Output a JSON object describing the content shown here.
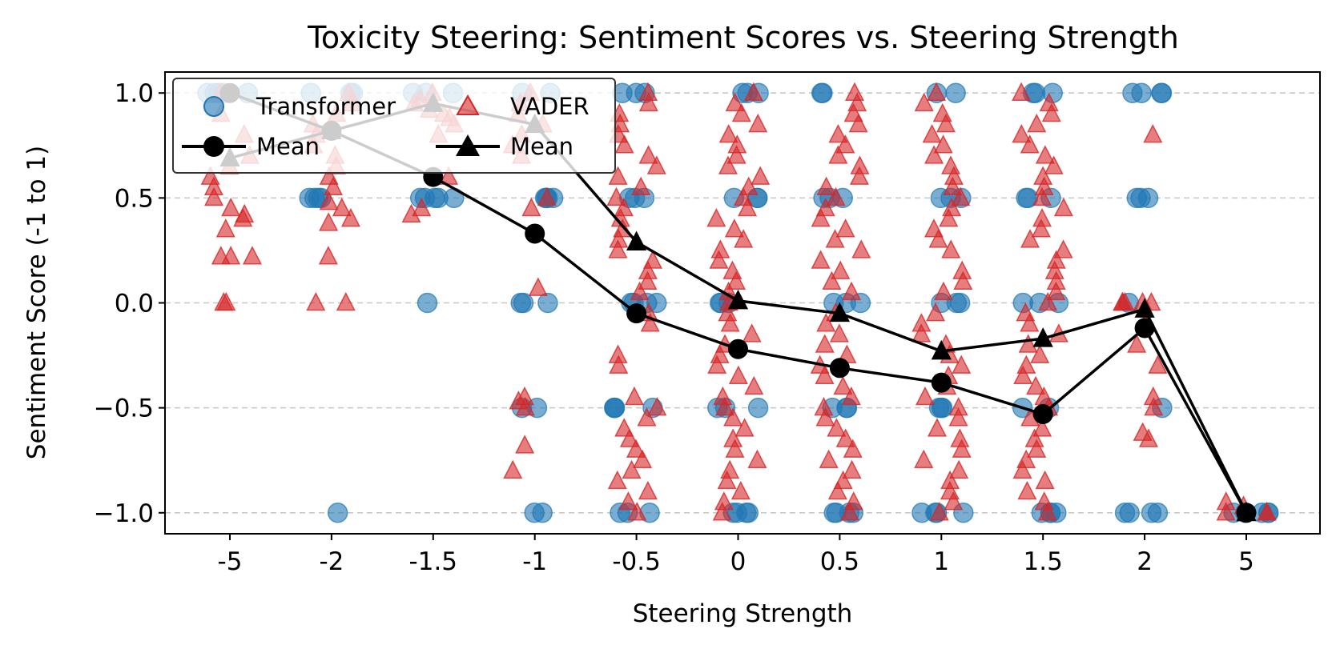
{
  "chart_data": {
    "type": "scatter",
    "title": "Toxicity Steering: Sentiment Scores vs. Steering Strength",
    "xlabel": "Steering Strength",
    "ylabel": "Sentiment Score (-1 to 1)",
    "categories": [
      "-5",
      "-2",
      "-1.5",
      "-1",
      "-0.5",
      "0",
      "0.5",
      "1",
      "1.5",
      "2",
      "5"
    ],
    "ylim": [
      -1.1,
      1.1
    ],
    "yticks": [
      1.0,
      0.5,
      0.0,
      -0.5,
      -1.0
    ],
    "ytick_labels": [
      "1.0",
      "0.5",
      "0.0",
      "−0.5",
      "−1.0"
    ],
    "grid": "horizontal dashed",
    "legend_position": "top-left",
    "series": [
      {
        "name": "Transformer",
        "kind": "scatter",
        "marker": "circle",
        "color": "#1f77b4",
        "points_by_category": [
          [
            1.0,
            1.0,
            1.0,
            1.0,
            1.0
          ],
          [
            1.0,
            1.0,
            1.0,
            0.5,
            0.5,
            0.5,
            0.5,
            -1.0
          ],
          [
            1.0,
            1.0,
            1.0,
            0.5,
            0.5,
            0.5,
            0.5,
            0.5,
            0.0
          ],
          [
            1.0,
            1.0,
            0.5,
            0.5,
            0.5,
            0.5,
            0.0,
            0.0,
            0.0,
            -0.5,
            -0.5,
            -1.0,
            -1.0
          ],
          [
            1.0,
            1.0,
            1.0,
            0.5,
            0.5,
            0.5,
            0.0,
            0.0,
            0.0,
            0.0,
            -0.5,
            -0.5,
            -0.5,
            -0.5,
            -1.0,
            -1.0,
            -1.0
          ],
          [
            1.0,
            1.0,
            1.0,
            0.5,
            0.5,
            0.5,
            0.0,
            0.0,
            0.0,
            -0.5,
            -0.5,
            -0.5,
            -1.0,
            -1.0,
            -1.0,
            -1.0
          ],
          [
            1.0,
            1.0,
            0.5,
            0.5,
            0.5,
            0.0,
            0.0,
            0.0,
            -0.5,
            -0.5,
            -0.5,
            -1.0,
            -1.0,
            -1.0,
            -1.0
          ],
          [
            1.0,
            1.0,
            0.5,
            0.5,
            0.5,
            0.0,
            0.0,
            0.0,
            -0.5,
            -0.5,
            -0.5,
            -1.0,
            -1.0,
            -1.0,
            -1.0
          ],
          [
            1.0,
            1.0,
            1.0,
            0.5,
            0.5,
            0.5,
            0.0,
            0.0,
            0.0,
            -0.5,
            -0.5,
            -1.0,
            -1.0,
            -1.0,
            -1.0
          ],
          [
            1.0,
            1.0,
            1.0,
            1.0,
            0.5,
            0.5,
            0.5,
            0.0,
            -0.5,
            -1.0,
            -1.0,
            -1.0,
            -1.0
          ],
          [
            -1.0,
            -1.0,
            -1.0,
            -1.0,
            -1.0
          ]
        ]
      },
      {
        "name": "VADER",
        "kind": "scatter",
        "marker": "triangle",
        "color": "#d62728",
        "points_by_category": [
          [
            1.0,
            0.9,
            0.8,
            0.7,
            0.65,
            0.6,
            0.55,
            0.5,
            0.45,
            0.42,
            0.4,
            0.35,
            0.22,
            0.22,
            0.22,
            0.0,
            0.0
          ],
          [
            1.0,
            0.95,
            0.9,
            0.85,
            0.8,
            0.75,
            0.7,
            0.65,
            0.6,
            0.55,
            0.48,
            0.45,
            0.4,
            0.38,
            0.22,
            0.0,
            0.0
          ],
          [
            1.0,
            0.97,
            0.95,
            0.92,
            0.9,
            0.88,
            0.85,
            0.8,
            0.6,
            0.45,
            0.42
          ],
          [
            1.0,
            0.95,
            0.9,
            0.85,
            0.8,
            0.75,
            0.7,
            0.5,
            0.45,
            0.07,
            -0.45,
            -0.47,
            -0.5,
            -0.68,
            -0.8
          ],
          [
            1.0,
            0.95,
            0.9,
            0.85,
            0.8,
            0.75,
            0.7,
            0.65,
            0.6,
            0.55,
            0.5,
            0.45,
            0.4,
            0.35,
            0.3,
            0.25,
            0.2,
            0.15,
            0.1,
            0.05,
            -0.05,
            -0.1,
            -0.25,
            -0.3,
            -0.45,
            -0.5,
            -0.55,
            -0.6,
            -0.65,
            -0.7,
            -0.75,
            -0.8,
            -0.85,
            -0.9,
            -0.95,
            -1.0
          ],
          [
            1.0,
            0.95,
            0.9,
            0.85,
            0.8,
            0.75,
            0.7,
            0.65,
            0.6,
            0.55,
            0.5,
            0.45,
            0.4,
            0.35,
            0.3,
            0.25,
            0.2,
            0.15,
            0.1,
            0.05,
            0.0,
            -0.05,
            -0.1,
            -0.15,
            -0.2,
            -0.25,
            -0.3,
            -0.35,
            -0.4,
            -0.45,
            -0.5,
            -0.55,
            -0.6,
            -0.65,
            -0.7,
            -0.75,
            -0.8,
            -0.85,
            -0.9,
            -0.95,
            -1.0
          ],
          [
            1.0,
            0.95,
            0.9,
            0.85,
            0.8,
            0.75,
            0.7,
            0.65,
            0.6,
            0.55,
            0.5,
            0.45,
            0.4,
            0.35,
            0.3,
            0.25,
            0.2,
            0.15,
            0.1,
            0.05,
            -0.05,
            -0.1,
            -0.15,
            -0.2,
            -0.25,
            -0.3,
            -0.35,
            -0.4,
            -0.45,
            -0.5,
            -0.55,
            -0.6,
            -0.65,
            -0.7,
            -0.75,
            -0.8,
            -0.85,
            -0.9,
            -0.95,
            -1.0
          ],
          [
            1.0,
            0.95,
            0.9,
            0.85,
            0.8,
            0.75,
            0.7,
            0.65,
            0.6,
            0.55,
            0.5,
            0.45,
            0.4,
            0.35,
            0.3,
            0.25,
            0.15,
            0.1,
            0.05,
            -0.05,
            -0.1,
            -0.15,
            -0.2,
            -0.25,
            -0.3,
            -0.35,
            -0.4,
            -0.45,
            -0.5,
            -0.55,
            -0.6,
            -0.65,
            -0.7,
            -0.75,
            -0.8,
            -0.85,
            -0.9,
            -0.95,
            -1.0
          ],
          [
            1.0,
            0.95,
            0.9,
            0.85,
            0.8,
            0.75,
            0.7,
            0.65,
            0.6,
            0.55,
            0.5,
            0.45,
            0.4,
            0.35,
            0.3,
            0.25,
            0.2,
            0.15,
            0.1,
            0.05,
            0.0,
            -0.05,
            -0.1,
            -0.15,
            -0.2,
            -0.25,
            -0.3,
            -0.35,
            -0.4,
            -0.45,
            -0.5,
            -0.55,
            -0.6,
            -0.65,
            -0.7,
            -0.75,
            -0.8,
            -0.85,
            -0.9,
            -0.95,
            -1.0
          ],
          [
            0.8,
            0.0,
            0.0,
            0.0,
            0.0,
            0.0,
            -0.1,
            -0.2,
            -0.3,
            -0.45,
            -0.5,
            -0.62,
            -0.65
          ],
          [
            -0.95,
            -0.97,
            -1.0,
            -1.0,
            -1.0
          ]
        ]
      },
      {
        "name": "Mean",
        "kind": "line",
        "marker": "circle",
        "color": "#000000",
        "values": [
          1.0,
          0.82,
          0.6,
          0.33,
          -0.05,
          -0.22,
          -0.31,
          -0.38,
          -0.53,
          -0.12,
          -1.0
        ]
      },
      {
        "name": "Mean",
        "kind": "line",
        "marker": "triangle",
        "color": "#000000",
        "values": [
          0.69,
          0.82,
          0.95,
          0.85,
          0.29,
          0.01,
          -0.05,
          -0.23,
          -0.17,
          -0.03,
          -1.0
        ]
      }
    ]
  }
}
